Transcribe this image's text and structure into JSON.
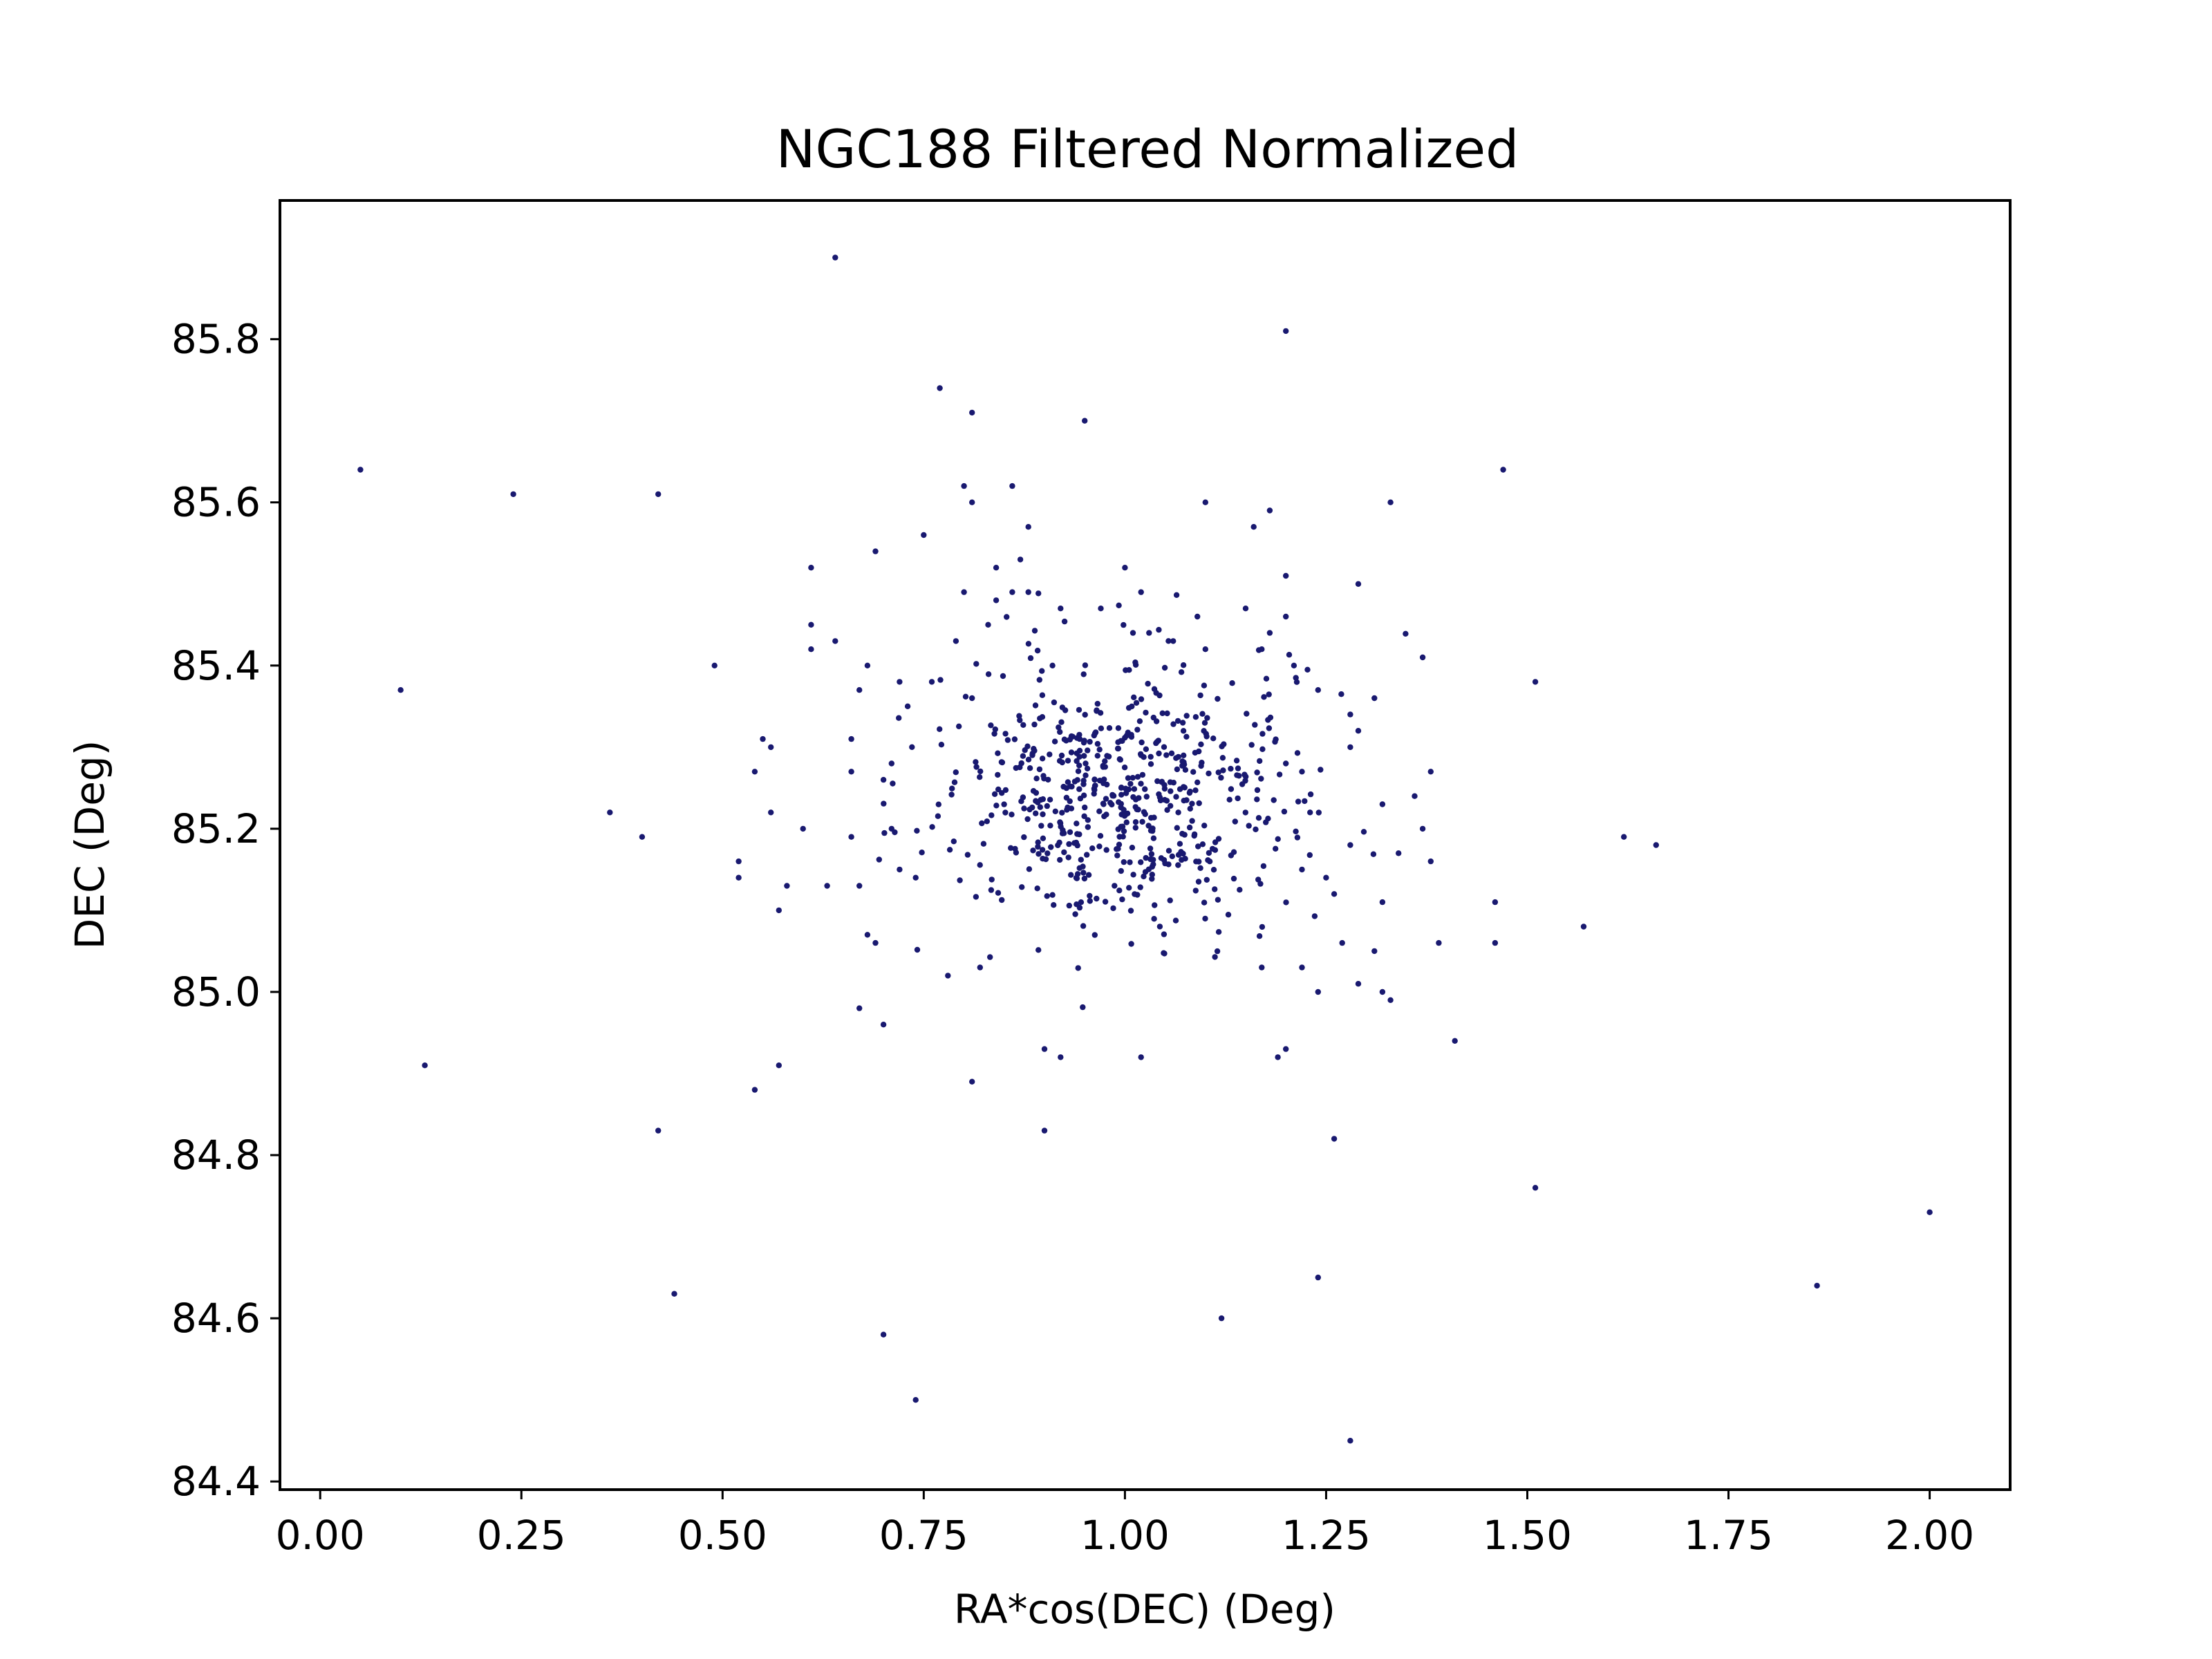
{
  "chart_data": {
    "type": "scatter",
    "title": "NGC188 Filtered Normalized",
    "xlabel": "RA*cos(DEC) (Deg)",
    "ylabel": "DEC (Deg)",
    "xlim": [
      -0.05,
      2.1
    ],
    "ylim": [
      84.39,
      85.97
    ],
    "x_ticks": [
      "0.00",
      "0.25",
      "0.50",
      "0.75",
      "1.00",
      "1.25",
      "1.50",
      "1.75",
      "2.00"
    ],
    "y_ticks": [
      "84.4",
      "84.6",
      "84.8",
      "85.0",
      "85.2",
      "85.4",
      "85.6",
      "85.8"
    ],
    "grid": false,
    "legend": "none",
    "point_color": "#191970",
    "series": [
      {
        "points": [
          [
            0.64,
            85.9
          ],
          [
            1.2,
            85.81
          ],
          [
            0.77,
            85.74
          ],
          [
            0.81,
            85.71
          ],
          [
            0.95,
            85.7
          ],
          [
            0.05,
            85.64
          ],
          [
            0.24,
            85.61
          ],
          [
            0.42,
            85.61
          ],
          [
            1.47,
            85.64
          ],
          [
            0.8,
            85.62
          ],
          [
            0.86,
            85.62
          ],
          [
            0.81,
            85.6
          ],
          [
            1.1,
            85.6
          ],
          [
            1.33,
            85.6
          ],
          [
            1.18,
            85.59
          ],
          [
            0.88,
            85.57
          ],
          [
            1.16,
            85.57
          ],
          [
            0.75,
            85.56
          ],
          [
            0.69,
            85.54
          ],
          [
            0.87,
            85.53
          ],
          [
            0.61,
            85.52
          ],
          [
            0.84,
            85.52
          ],
          [
            1.0,
            85.52
          ],
          [
            1.2,
            85.51
          ],
          [
            1.29,
            85.5
          ],
          [
            0.8,
            85.49
          ],
          [
            0.86,
            85.49
          ],
          [
            0.88,
            85.49
          ],
          [
            1.02,
            85.49
          ],
          [
            0.84,
            85.48
          ],
          [
            0.92,
            85.47
          ],
          [
            0.97,
            85.47
          ],
          [
            1.15,
            85.47
          ],
          [
            1.09,
            85.46
          ],
          [
            1.2,
            85.46
          ],
          [
            0.61,
            85.45
          ],
          [
            0.83,
            85.45
          ],
          [
            1.18,
            85.44
          ],
          [
            0.64,
            85.43
          ],
          [
            0.79,
            85.43
          ],
          [
            0.61,
            85.42
          ],
          [
            1.01,
            85.44
          ],
          [
            1.03,
            85.44
          ],
          [
            1.06,
            85.43
          ],
          [
            1.1,
            85.42
          ],
          [
            1.17,
            85.42
          ],
          [
            0.49,
            85.4
          ],
          [
            1.37,
            85.41
          ],
          [
            0.1,
            85.37
          ],
          [
            1.51,
            85.38
          ],
          [
            1.21,
            85.4
          ],
          [
            0.68,
            85.4
          ],
          [
            0.91,
            85.4
          ],
          [
            1.24,
            85.37
          ],
          [
            1.31,
            85.36
          ],
          [
            0.76,
            85.38
          ],
          [
            0.81,
            85.36
          ],
          [
            0.72,
            85.38
          ],
          [
            0.67,
            85.37
          ],
          [
            0.73,
            85.35
          ],
          [
            1.28,
            85.34
          ],
          [
            1.29,
            85.32
          ],
          [
            1.28,
            85.3
          ],
          [
            0.66,
            85.31
          ],
          [
            0.55,
            85.31
          ],
          [
            0.56,
            85.3
          ],
          [
            1.38,
            85.27
          ],
          [
            0.54,
            85.27
          ],
          [
            0.66,
            85.27
          ],
          [
            0.71,
            85.28
          ],
          [
            0.7,
            85.26
          ],
          [
            1.2,
            85.28
          ],
          [
            1.22,
            85.27
          ],
          [
            1.32,
            85.23
          ],
          [
            1.36,
            85.24
          ],
          [
            0.36,
            85.22
          ],
          [
            0.56,
            85.22
          ],
          [
            1.23,
            85.22
          ],
          [
            1.37,
            85.2
          ],
          [
            0.4,
            85.19
          ],
          [
            0.6,
            85.2
          ],
          [
            0.66,
            85.19
          ],
          [
            0.71,
            85.2
          ],
          [
            1.62,
            85.19
          ],
          [
            1.66,
            85.18
          ],
          [
            1.28,
            85.18
          ],
          [
            1.34,
            85.17
          ],
          [
            1.38,
            85.16
          ],
          [
            0.52,
            85.16
          ],
          [
            0.52,
            85.14
          ],
          [
            0.58,
            85.13
          ],
          [
            0.63,
            85.13
          ],
          [
            0.67,
            85.13
          ],
          [
            0.72,
            85.15
          ],
          [
            0.74,
            85.14
          ],
          [
            1.22,
            85.15
          ],
          [
            1.25,
            85.14
          ],
          [
            1.26,
            85.12
          ],
          [
            0.57,
            85.1
          ],
          [
            1.32,
            85.11
          ],
          [
            1.46,
            85.11
          ],
          [
            1.57,
            85.08
          ],
          [
            0.68,
            85.07
          ],
          [
            1.27,
            85.06
          ],
          [
            1.31,
            85.05
          ],
          [
            1.39,
            85.06
          ],
          [
            1.46,
            85.06
          ],
          [
            0.69,
            85.06
          ],
          [
            0.78,
            85.02
          ],
          [
            0.82,
            85.03
          ],
          [
            1.17,
            85.03
          ],
          [
            1.22,
            85.03
          ],
          [
            1.24,
            85.0
          ],
          [
            1.29,
            85.01
          ],
          [
            1.32,
            85.0
          ],
          [
            1.33,
            84.99
          ],
          [
            0.67,
            84.98
          ],
          [
            0.7,
            84.96
          ],
          [
            1.41,
            84.94
          ],
          [
            0.13,
            84.91
          ],
          [
            0.57,
            84.91
          ],
          [
            0.81,
            84.89
          ],
          [
            0.9,
            84.93
          ],
          [
            0.92,
            84.92
          ],
          [
            1.02,
            84.92
          ],
          [
            1.19,
            84.92
          ],
          [
            1.2,
            84.93
          ],
          [
            0.54,
            84.88
          ],
          [
            0.9,
            84.83
          ],
          [
            0.42,
            84.83
          ],
          [
            1.26,
            84.82
          ],
          [
            1.51,
            84.76
          ],
          [
            2.0,
            84.73
          ],
          [
            0.44,
            84.63
          ],
          [
            1.24,
            84.65
          ],
          [
            1.86,
            84.64
          ],
          [
            0.7,
            84.58
          ],
          [
            1.12,
            84.6
          ],
          [
            0.74,
            84.5
          ],
          [
            1.28,
            84.45
          ]
        ]
      }
    ]
  }
}
